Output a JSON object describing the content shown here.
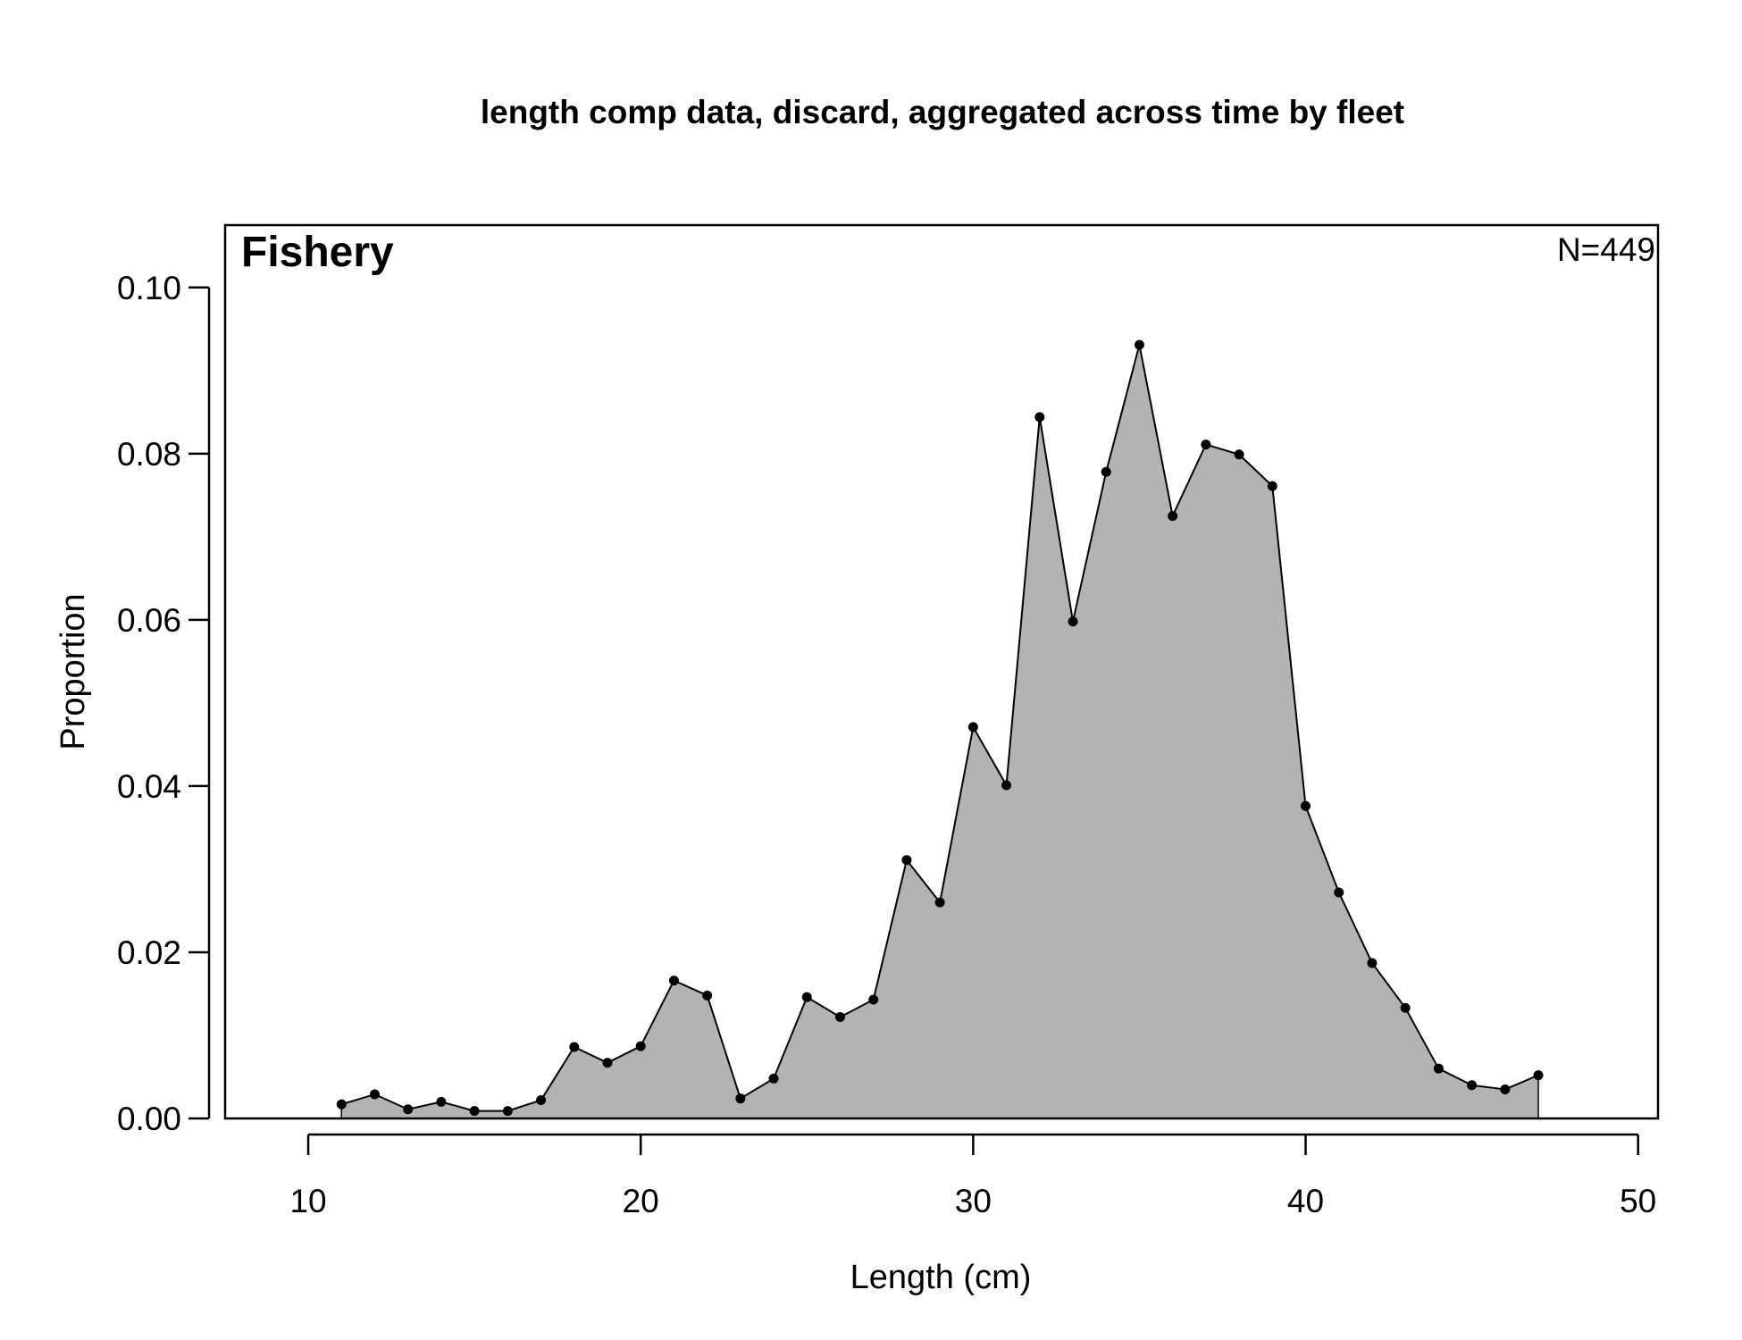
{
  "chart_data": {
    "type": "area",
    "title": "length comp data, discard, aggregated across time by fleet",
    "xlabel": "Length (cm)",
    "ylabel": "Proportion",
    "panel_label": "Fishery",
    "sample_size_label": "N=449",
    "xlim": [
      7.5,
      50.6
    ],
    "ylim": [
      0,
      0.1075
    ],
    "x_ticks": [
      10,
      20,
      30,
      40,
      50
    ],
    "x_tick_labels": [
      "10",
      "20",
      "30",
      "40",
      "50"
    ],
    "y_ticks": [
      0,
      0.02,
      0.04,
      0.06,
      0.08,
      0.1
    ],
    "y_tick_labels": [
      "0.00",
      "0.02",
      "0.04",
      "0.06",
      "0.08",
      "0.10"
    ],
    "grid": false,
    "fill_color": "#b3b3b3",
    "line_color": "#000000",
    "series": [
      {
        "x": [
          11,
          12,
          13,
          14,
          15,
          16,
          17,
          18,
          19,
          20,
          21,
          22,
          23,
          24,
          25,
          26,
          27,
          28,
          29,
          30,
          31,
          32,
          33,
          34,
          35,
          36,
          37,
          38,
          39,
          40,
          41,
          42,
          43,
          44,
          45,
          46,
          47
        ],
        "values": [
          0.0017,
          0.0029,
          0.0011,
          0.002,
          0.0009,
          0.0009,
          0.0022,
          0.0086,
          0.0067,
          0.0087,
          0.0166,
          0.0148,
          0.0024,
          0.0048,
          0.0146,
          0.0122,
          0.0143,
          0.0311,
          0.026,
          0.0471,
          0.0401,
          0.0844,
          0.0598,
          0.0778,
          0.0931,
          0.0725,
          0.0811,
          0.0799,
          0.0761,
          0.0376,
          0.0272,
          0.0187,
          0.0133,
          0.006,
          0.004,
          0.0035,
          0.0052
        ]
      }
    ]
  }
}
